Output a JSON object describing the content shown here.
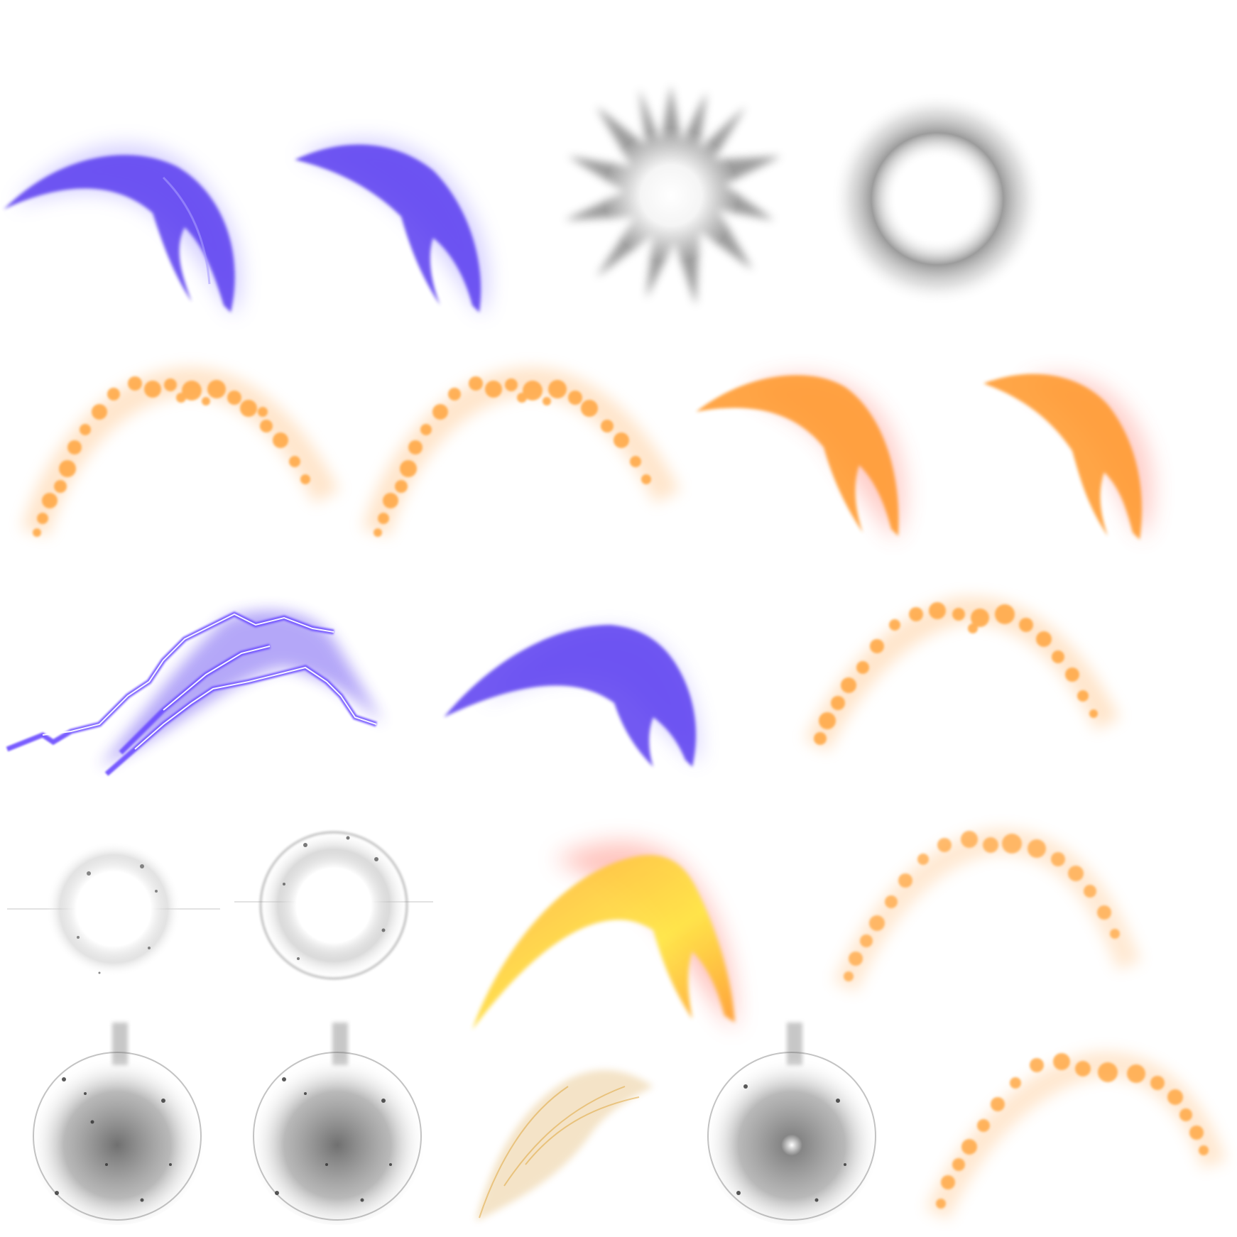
{
  "sheet": {
    "background": "#ffffff",
    "palette": {
      "violet": "#5a3cf0",
      "violet_glow": "#8a7cff",
      "orange": "#ff9a2e",
      "orange_glow": "#ffb870",
      "red_glow": "#ff5a4a",
      "yellow": "#fff24a",
      "smoke_gray": "#8a8a8a",
      "ring_gray": "#9a9a9a",
      "amber_wisp": "#e0b060"
    },
    "sprites": [
      {
        "id": "violet-slash-1",
        "kind": "slash",
        "color": "violet"
      },
      {
        "id": "violet-slash-2",
        "kind": "slash",
        "color": "violet"
      },
      {
        "id": "gray-burst",
        "kind": "burst",
        "color": "smoke_gray"
      },
      {
        "id": "gray-ring",
        "kind": "ring",
        "color": "ring_gray"
      },
      {
        "id": "orange-spray-1",
        "kind": "spray",
        "color": "orange"
      },
      {
        "id": "orange-spray-2",
        "kind": "spray",
        "color": "orange"
      },
      {
        "id": "orange-slash-1",
        "kind": "slash",
        "color": "orange"
      },
      {
        "id": "orange-slash-2",
        "kind": "slash",
        "color": "orange"
      },
      {
        "id": "violet-lightning",
        "kind": "lightning",
        "color": "violet"
      },
      {
        "id": "violet-arc",
        "kind": "slash",
        "color": "violet"
      },
      {
        "id": "orange-spray-3",
        "kind": "spray",
        "color": "orange"
      },
      {
        "id": "white-flash-1",
        "kind": "flash",
        "color": "smoke_gray"
      },
      {
        "id": "white-flash-ring",
        "kind": "flash",
        "color": "smoke_gray"
      },
      {
        "id": "fire-arc",
        "kind": "slash",
        "color": "yellow"
      },
      {
        "id": "orange-spray-4",
        "kind": "spray",
        "color": "orange"
      },
      {
        "id": "smoke-sphere-1",
        "kind": "smoke",
        "color": "smoke_gray"
      },
      {
        "id": "smoke-sphere-2",
        "kind": "smoke",
        "color": "smoke_gray"
      },
      {
        "id": "amber-wisp",
        "kind": "wisp",
        "color": "amber_wisp"
      },
      {
        "id": "smoke-sphere-3",
        "kind": "smoke",
        "color": "smoke_gray"
      },
      {
        "id": "orange-spray-5",
        "kind": "spray",
        "color": "orange"
      }
    ]
  }
}
